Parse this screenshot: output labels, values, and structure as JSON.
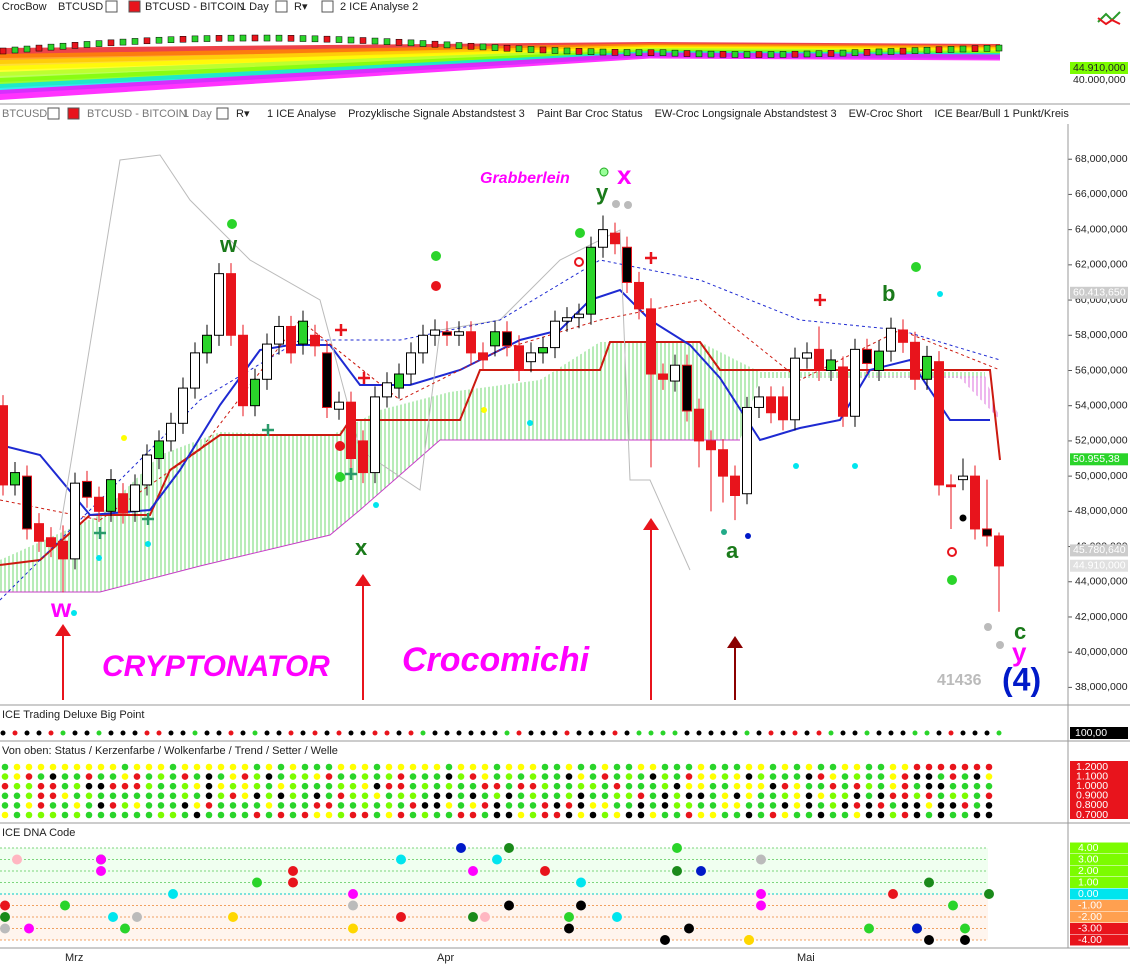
{
  "toolbar_top": {
    "app": "CrocBow",
    "symbol": "BTCUSD",
    "name": "BTCUSD - BITCOIN",
    "period": "1 Day",
    "button": "R▾",
    "analysis": "2 ICE Analyse 2"
  },
  "toolbar_main": {
    "symbol": "BTCUSD",
    "name": "BTCUSD - BITCOIN",
    "period": "1 Day",
    "button": "R▾",
    "indicators": [
      "1 ICE Analyse",
      "Prozyklische Signale Abstandstest 3",
      "Paint Bar Croc Status",
      "EW-Croc Longsignale Abstandstest 3",
      "EW-Croc Short",
      "ICE Bear/Bull 1 Punkt/Kreis"
    ]
  },
  "top_axis": {
    "labels": [
      "44.910,000",
      "40.000,000"
    ]
  },
  "main_chart": {
    "ylim": [
      37000000,
      70000000
    ],
    "yticks": [
      {
        "value": 38000000,
        "label": "38,000,000"
      },
      {
        "value": 40000000,
        "label": "40,000,000"
      },
      {
        "value": 42000000,
        "label": "42,000,000"
      },
      {
        "value": 44000000,
        "label": "44,000,000"
      },
      {
        "value": 46000000,
        "label": "46,000,000"
      },
      {
        "value": 48000000,
        "label": "48,000,000"
      },
      {
        "value": 50000000,
        "label": "50,000,000"
      },
      {
        "value": 52000000,
        "label": "52,000,000"
      },
      {
        "value": 54000000,
        "label": "54,000,000"
      },
      {
        "value": 56000000,
        "label": "56,000,000"
      },
      {
        "value": 58000000,
        "label": "58,000,000"
      },
      {
        "value": 60000000,
        "label": "60,000,000"
      },
      {
        "value": 62000000,
        "label": "62,000,000"
      },
      {
        "value": 64000000,
        "label": "64,000,000"
      },
      {
        "value": 66000000,
        "label": "66,000,000"
      },
      {
        "value": 68000000,
        "label": "68,000,000"
      }
    ],
    "price_markers": [
      {
        "value": 60413650,
        "label": "60.413,650"
      },
      {
        "value": 50955380,
        "label": "50.955,38"
      },
      {
        "value": 45780640,
        "label": "45.780,640"
      },
      {
        "value": 44910000,
        "label": "44.910,000"
      }
    ],
    "candles": [
      [
        54000000,
        54600000,
        48900000,
        49500000
      ],
      [
        49500000,
        50800000,
        48900000,
        50200000
      ],
      [
        50000000,
        50600000,
        46400000,
        47000000
      ],
      [
        47300000,
        47900000,
        45700000,
        46300000
      ],
      [
        46500000,
        47100000,
        45400000,
        46000000
      ],
      [
        46300000,
        47200000,
        43400000,
        45300000
      ],
      [
        45300000,
        50200000,
        44700000,
        49600000
      ],
      [
        49700000,
        50300000,
        48200000,
        48800000
      ],
      [
        48800000,
        49400000,
        47400000,
        48000000
      ],
      [
        48000000,
        50400000,
        47400000,
        49800000
      ],
      [
        49000000,
        49600000,
        47300000,
        47900000
      ],
      [
        48000000,
        50100000,
        47400000,
        49500000
      ],
      [
        49500000,
        51800000,
        48900000,
        51200000
      ],
      [
        51000000,
        52600000,
        50400000,
        52000000
      ],
      [
        52000000,
        53600000,
        51400000,
        53000000
      ],
      [
        53000000,
        55600000,
        52400000,
        55000000
      ],
      [
        55000000,
        57600000,
        54400000,
        57000000
      ],
      [
        57000000,
        58600000,
        56400000,
        58000000
      ],
      [
        58000000,
        62100000,
        57400000,
        61500000
      ],
      [
        61500000,
        62100000,
        57400000,
        58000000
      ],
      [
        58000000,
        58600000,
        53400000,
        54000000
      ],
      [
        54000000,
        56100000,
        53400000,
        55500000
      ],
      [
        55500000,
        58100000,
        54900000,
        57500000
      ],
      [
        57500000,
        59100000,
        56900000,
        58500000
      ],
      [
        58500000,
        59100000,
        56400000,
        57000000
      ],
      [
        57500000,
        59400000,
        56900000,
        58800000
      ],
      [
        58000000,
        58600000,
        56800000,
        57400000
      ],
      [
        57000000,
        57600000,
        53300000,
        53900000
      ],
      [
        53800000,
        54800000,
        53200000,
        54200000
      ],
      [
        54200000,
        54800000,
        50400000,
        51000000
      ],
      [
        52000000,
        52600000,
        49600000,
        50200000
      ],
      [
        50200000,
        55100000,
        49600000,
        54500000
      ],
      [
        54500000,
        55900000,
        53900000,
        55300000
      ],
      [
        55000000,
        56400000,
        54400000,
        55800000
      ],
      [
        55800000,
        57600000,
        55200000,
        57000000
      ],
      [
        57000000,
        58600000,
        56400000,
        58000000
      ],
      [
        58000000,
        58900000,
        57400000,
        58300000
      ],
      [
        58200000,
        58800000,
        57400000,
        58000000
      ],
      [
        58000000,
        58800000,
        57400000,
        58200000
      ],
      [
        58200000,
        58800000,
        56400000,
        57000000
      ],
      [
        57000000,
        57600000,
        56000000,
        56600000
      ],
      [
        57400000,
        58800000,
        56800000,
        58200000
      ],
      [
        58200000,
        58800000,
        56800000,
        57400000
      ],
      [
        57400000,
        58000000,
        55400000,
        56000000
      ],
      [
        56500000,
        57600000,
        55900000,
        57000000
      ],
      [
        57000000,
        57900000,
        56400000,
        57300000
      ],
      [
        57300000,
        59400000,
        56700000,
        58800000
      ],
      [
        58800000,
        59600000,
        58200000,
        59000000
      ],
      [
        59000000,
        59800000,
        58400000,
        59200000
      ],
      [
        59200000,
        63600000,
        58600000,
        63000000
      ],
      [
        63000000,
        64800000,
        62400000,
        64000000
      ],
      [
        63800000,
        64400000,
        62600000,
        63200000
      ],
      [
        63000000,
        63600000,
        60400000,
        61000000
      ],
      [
        61000000,
        61600000,
        58900000,
        59500000
      ],
      [
        59500000,
        60100000,
        50500000,
        55800000
      ],
      [
        55800000,
        56400000,
        54900000,
        55500000
      ],
      [
        55400000,
        56900000,
        54800000,
        56300000
      ],
      [
        56300000,
        56900000,
        53100000,
        53700000
      ],
      [
        53800000,
        54400000,
        50500000,
        52000000
      ],
      [
        52000000,
        52600000,
        48000000,
        51500000
      ],
      [
        51500000,
        52100000,
        48500000,
        50000000
      ],
      [
        50000000,
        50600000,
        47500000,
        48900000
      ],
      [
        49000000,
        54500000,
        48400000,
        53900000
      ],
      [
        53900000,
        55100000,
        53300000,
        54500000
      ],
      [
        54500000,
        55100000,
        53000000,
        53600000
      ],
      [
        54500000,
        55100000,
        52600000,
        53200000
      ],
      [
        53200000,
        57300000,
        52600000,
        56700000
      ],
      [
        56700000,
        57600000,
        56100000,
        57000000
      ],
      [
        57200000,
        58500000,
        55400000,
        56000000
      ],
      [
        56000000,
        57200000,
        55400000,
        56600000
      ],
      [
        56200000,
        56800000,
        52800000,
        53400000
      ],
      [
        53400000,
        57800000,
        52800000,
        57200000
      ],
      [
        57200000,
        57800000,
        55800000,
        56400000
      ],
      [
        56000000,
        57700000,
        55400000,
        57100000
      ],
      [
        57100000,
        59000000,
        56500000,
        58400000
      ],
      [
        58300000,
        58900000,
        57000000,
        57600000
      ],
      [
        57600000,
        58200000,
        54900000,
        55500000
      ],
      [
        55500000,
        57400000,
        54900000,
        56800000
      ],
      [
        56500000,
        57100000,
        48900000,
        49500000
      ],
      [
        49500000,
        50100000,
        47000000,
        49400000
      ],
      [
        49800000,
        51000000,
        49200000,
        50000000
      ],
      [
        50000000,
        50600000,
        46400000,
        47000000
      ],
      [
        47000000,
        49800000,
        46000000,
        46600000
      ],
      [
        46600000,
        46800000,
        42300000,
        44900000
      ]
    ],
    "annotations": {
      "grabberlein": "Grabberlein",
      "x_top": "x",
      "y_top": "y",
      "w_top": "w",
      "w_bottom": "w",
      "x_bottom": "x",
      "a": "a",
      "b": "b",
      "c": "c",
      "y_bottom": "y",
      "wave4": "(4)",
      "cryptonator": "CRYPTONATOR",
      "crocomichi": "Crocomichi",
      "count": "41436"
    }
  },
  "panel_bigpoint": {
    "title": "ICE Trading Deluxe Big Point",
    "value_label": "100,00"
  },
  "panel_status": {
    "title": "Von oben: Status / Kerzenfarbe / Wolkenfarbe / Trend / Setter / Welle",
    "scale": [
      "1.2000",
      "1.1000",
      "1.0000",
      "0.9000",
      "0.8000",
      "0.7000"
    ]
  },
  "panel_dna": {
    "title": "ICE DNA Code",
    "yticks": [
      {
        "value": 4,
        "label": "4.00"
      },
      {
        "value": 3,
        "label": "3.00"
      },
      {
        "value": 2,
        "label": "2.00"
      },
      {
        "value": 1,
        "label": "1.00"
      },
      {
        "value": 0,
        "label": "0.00"
      },
      {
        "value": -1,
        "label": "-1.00"
      },
      {
        "value": -2,
        "label": "-2.00"
      },
      {
        "value": -3,
        "label": "-3.00"
      },
      {
        "value": -4,
        "label": "-4.00"
      }
    ]
  },
  "x_axis": {
    "labels": [
      "Mrz",
      "Apr",
      "Mai"
    ]
  }
}
